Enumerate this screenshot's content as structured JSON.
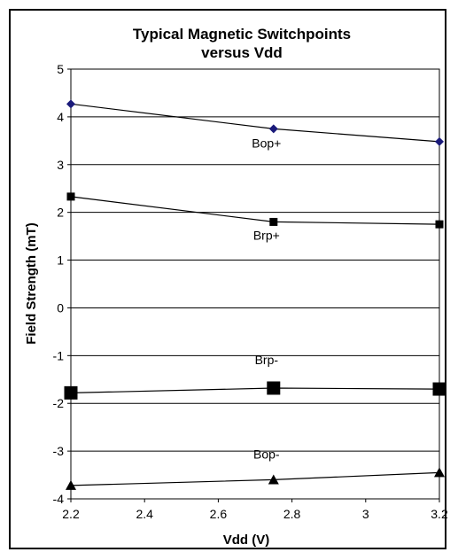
{
  "chart_data": {
    "type": "line",
    "title_lines": [
      "Typical Magnetic Switchpoints",
      "versus Vdd"
    ],
    "xlabel": "Vdd (V)",
    "ylabel": "Field Strength (mT)",
    "xlim": [
      2.2,
      3.2
    ],
    "ylim": [
      -4,
      5
    ],
    "x_ticks": [
      "2.2",
      "2.4",
      "2.6",
      "2.8",
      "3",
      "3.2"
    ],
    "y_ticks": [
      "5",
      "4",
      "3",
      "2",
      "1",
      "0",
      "-1",
      "-2",
      "-3",
      "-4"
    ],
    "grid": "horizontal",
    "series": [
      {
        "name": "Bop+",
        "marker": "diamond",
        "marker_color": "#1a1a7a",
        "x": [
          2.2,
          2.75,
          3.2
        ],
        "values": [
          4.27,
          3.75,
          3.48
        ]
      },
      {
        "name": "Brp+",
        "marker": "square",
        "marker_color": "#000000",
        "x": [
          2.2,
          2.75,
          3.2
        ],
        "values": [
          2.33,
          1.8,
          1.75
        ]
      },
      {
        "name": "Brp-",
        "marker": "square-large",
        "marker_color": "#000000",
        "x": [
          2.2,
          2.75,
          3.2
        ],
        "values": [
          -1.78,
          -1.68,
          -1.7
        ]
      },
      {
        "name": "Bop-",
        "marker": "triangle",
        "marker_color": "#000000",
        "x": [
          2.2,
          2.75,
          3.2
        ],
        "values": [
          -3.72,
          -3.6,
          -3.45
        ]
      }
    ]
  }
}
